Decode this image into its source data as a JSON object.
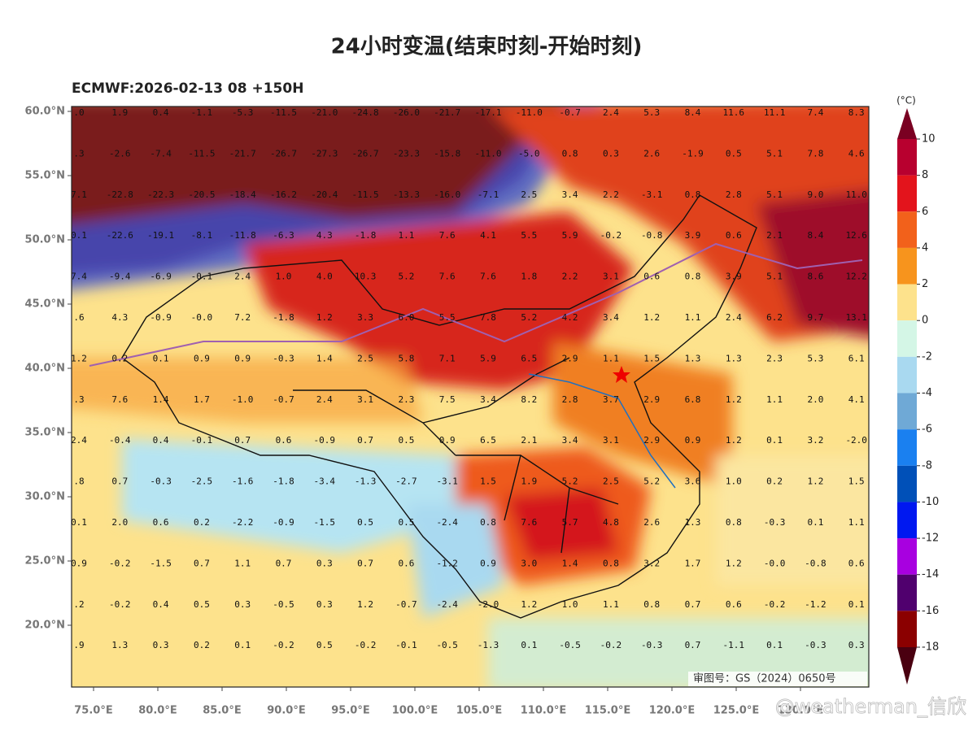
{
  "header": {
    "title": "24小时变温(结束时刻-开始时刻)",
    "subtitle": "ECMWF:2026-02-13 08 +150H"
  },
  "y_axis": {
    "labels": [
      "60.0°N",
      "55.0°N",
      "50.0°N",
      "45.0°N",
      "40.0°N",
      "35.0°N",
      "30.0°N",
      "25.0°N",
      "20.0°N"
    ]
  },
  "x_axis": {
    "labels": [
      "75.0°E",
      "80.0°E",
      "85.0°E",
      "90.0°E",
      "95.0°E",
      "100.0°E",
      "105.0°E",
      "110.0°E",
      "115.0°E",
      "120.0°E",
      "125.0°E",
      "130.0°E"
    ]
  },
  "colorbar": {
    "unit": "(°C)",
    "ticks": [
      10,
      8,
      6,
      4,
      2,
      0,
      -2,
      -4,
      -6,
      -8,
      -10,
      -12,
      -14,
      -16,
      -18
    ],
    "colors": [
      "#7a0022",
      "#b8002f",
      "#e3141c",
      "#f2611b",
      "#f7941d",
      "#fde28c",
      "#d4f6e6",
      "#a9d9f0",
      "#6fa9d6",
      "#1a80f0",
      "#0050b8",
      "#0018f0",
      "#a800e0",
      "#50006e",
      "#8b0000",
      "#4a0010"
    ]
  },
  "grid_values": [
    [
      ".0",
      "1.9",
      "0.4",
      "-1.1",
      "-5.3",
      "-11.5",
      "-21.0",
      "-24.8",
      "-26.0",
      "-21.7",
      "-17.1",
      "-11.0",
      "-0.7",
      "2.4",
      "5.3",
      "8.4",
      "11.6",
      "11.1",
      "7.4",
      "8.3"
    ],
    [
      ".3",
      "-2.6",
      "-7.4",
      "-11.5",
      "-21.7",
      "-26.7",
      "-27.3",
      "-26.7",
      "-23.3",
      "-15.8",
      "-11.0",
      "-5.0",
      "0.8",
      "0.3",
      "2.6",
      "-1.9",
      "0.5",
      "5.1",
      "7.8",
      "4.6"
    ],
    [
      "7.1",
      "-22.8",
      "-22.3",
      "-20.5",
      "-18.4",
      "-16.2",
      "-20.4",
      "-11.5",
      "-13.3",
      "-16.0",
      "-7.1",
      "2.5",
      "3.4",
      "2.2",
      "-3.1",
      "0.8",
      "2.8",
      "5.1",
      "9.0",
      "11.0"
    ],
    [
      "0.1",
      "-22.6",
      "-19.1",
      "-8.1",
      "-11.8",
      "-6.3",
      "4.3",
      "-1.8",
      "1.1",
      "7.6",
      "4.1",
      "5.5",
      "5.9",
      "-0.2",
      "-0.8",
      "3.9",
      "0.6",
      "2.1",
      "8.4",
      "12.6"
    ],
    [
      "7.4",
      "-9.4",
      "-6.9",
      "-0.1",
      "2.4",
      "1.0",
      "4.0",
      "10.3",
      "5.2",
      "7.6",
      "7.6",
      "1.8",
      "2.2",
      "3.1",
      "0.6",
      "0.8",
      "3.9",
      "5.1",
      "8.6",
      "12.2"
    ],
    [
      ".6",
      "4.3",
      "-0.9",
      "-0.0",
      "7.2",
      "-1.8",
      "1.2",
      "3.3",
      "6.0",
      "5.5",
      "7.8",
      "5.2",
      "4.2",
      "3.4",
      "1.2",
      "1.1",
      "2.4",
      "6.2",
      "9.7",
      "13.1"
    ],
    [
      "1.2",
      "0.2",
      "0.1",
      "0.9",
      "0.9",
      "-0.3",
      "1.4",
      "2.5",
      "5.8",
      "7.1",
      "5.9",
      "6.5",
      "2.9",
      "1.1",
      "1.5",
      "1.3",
      "1.3",
      "2.3",
      "5.3",
      "6.1"
    ],
    [
      ".3",
      "7.6",
      "1.4",
      "1.7",
      "-1.0",
      "-0.7",
      "2.4",
      "3.1",
      "2.3",
      "7.5",
      "3.4",
      "8.2",
      "2.8",
      "3.7",
      "2.9",
      "6.8",
      "1.2",
      "1.1",
      "2.0",
      "4.1"
    ],
    [
      "2.4",
      "-0.4",
      "0.4",
      "-0.1",
      "0.7",
      "0.6",
      "-0.9",
      "0.7",
      "0.5",
      "0.9",
      "6.5",
      "2.1",
      "3.4",
      "3.1",
      "2.9",
      "0.9",
      "1.2",
      "0.1",
      "3.2",
      "-2.0"
    ],
    [
      ".8",
      "0.7",
      "-0.3",
      "-2.5",
      "-1.6",
      "-1.8",
      "-3.4",
      "-1.3",
      "-2.7",
      "-3.1",
      "1.5",
      "1.9",
      "5.2",
      "2.5",
      "5.2",
      "3.6",
      "1.0",
      "0.2",
      "1.2",
      "1.5"
    ],
    [
      "0.1",
      "2.0",
      "0.6",
      "0.2",
      "-2.2",
      "-0.9",
      "-1.5",
      "0.5",
      "0.5",
      "-2.4",
      "0.8",
      "7.6",
      "5.7",
      "4.8",
      "2.6",
      "1.3",
      "0.8",
      "-0.3",
      "0.1",
      "1.1"
    ],
    [
      "0.9",
      "-0.2",
      "-1.5",
      "0.7",
      "1.1",
      "0.7",
      "0.3",
      "0.7",
      "0.6",
      "-1.2",
      "0.9",
      "3.0",
      "1.4",
      "0.8",
      "3.2",
      "1.7",
      "1.2",
      "-0.0",
      "-0.8",
      "0.6"
    ],
    [
      ".2",
      "-0.2",
      "0.4",
      "0.5",
      "0.3",
      "-0.5",
      "0.3",
      "1.2",
      "-0.7",
      "-2.4",
      "-2.0",
      "1.2",
      "1.0",
      "1.1",
      "0.8",
      "0.7",
      "0.6",
      "-0.2",
      "-1.2",
      "0.1"
    ],
    [
      ".9",
      "1.3",
      "0.3",
      "0.2",
      "0.1",
      "-0.2",
      "0.5",
      "-0.2",
      "-0.1",
      "-0.5",
      "-1.3",
      "0.1",
      "-0.5",
      "-0.2",
      "-0.3",
      "0.7",
      "-1.1",
      "0.1",
      "-0.3",
      "0.3"
    ]
  ],
  "footer": {
    "approval": "审图号：GS（2024）0650号",
    "watermark": "@weatherman_信欣"
  }
}
